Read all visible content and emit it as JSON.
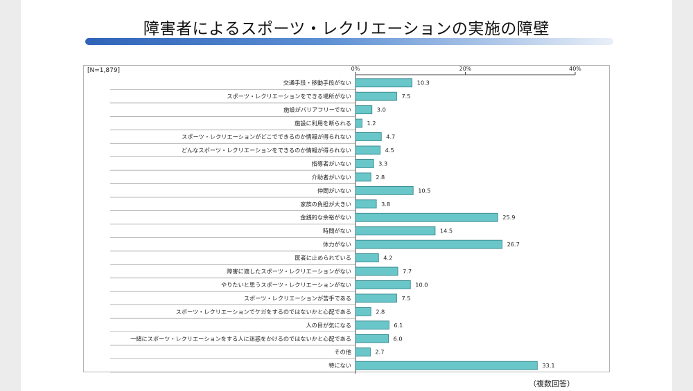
{
  "title": "障害者によるスポーツ・レクリエーションの実施の障壁",
  "sample_label": "[N=1,879]",
  "footnote": "（複数回答）",
  "colors": {
    "bar_fill": "#69c6c9",
    "bar_stroke": "#2f7f83",
    "title_bar": "#3a6fc2"
  },
  "chart_data": {
    "type": "bar",
    "orientation": "horizontal",
    "xlim": [
      0,
      40
    ],
    "xticks": [
      0,
      20,
      40
    ],
    "xtick_labels": [
      "0%",
      "20%",
      "40%"
    ],
    "grid": false,
    "categories": [
      "交通手段・移動手段がない",
      "スポーツ・レクリエーションをできる場所がない",
      "施設がバリアフリーでない",
      "施設に利用を断られる",
      "スポーツ・レクリエーションがどこでできるのか情報が得られない",
      "どんなスポーツ・レクリエーションをできるのか情報が得られない",
      "指導者がいない",
      "介助者がいない",
      "仲間がいない",
      "家族の負担が大きい",
      "金銭的な余裕がない",
      "時間がない",
      "体力がない",
      "医者に止められている",
      "障害に適したスポーツ・レクリエーションがない",
      "やりたいと思うスポーツ・レクリエーションがない",
      "スポーツ・レクリエーションが苦手である",
      "スポーツ・レクリエーションでケガをするのではないかと心配である",
      "人の目が気になる",
      "一緒にスポーツ・レクリエーションをする人に迷惑をかけるのではないかと心配である",
      "その他",
      "特にない"
    ],
    "values": [
      10.3,
      7.5,
      3.0,
      1.2,
      4.7,
      4.5,
      3.3,
      2.8,
      10.5,
      3.8,
      25.9,
      14.5,
      26.7,
      4.2,
      7.7,
      10.0,
      7.5,
      2.8,
      6.1,
      6.0,
      2.7,
      33.1
    ],
    "value_labels": [
      "10.3",
      "7.5",
      "3.0",
      "1.2",
      "4.7",
      "4.5",
      "3.3",
      "2.8",
      "10.5",
      "3.8",
      "25.9",
      "14.5",
      "26.7",
      "4.2",
      "7.7",
      "10.0",
      "7.5",
      "2.8",
      "6.1",
      "6.0",
      "2.7",
      "33.1"
    ]
  }
}
